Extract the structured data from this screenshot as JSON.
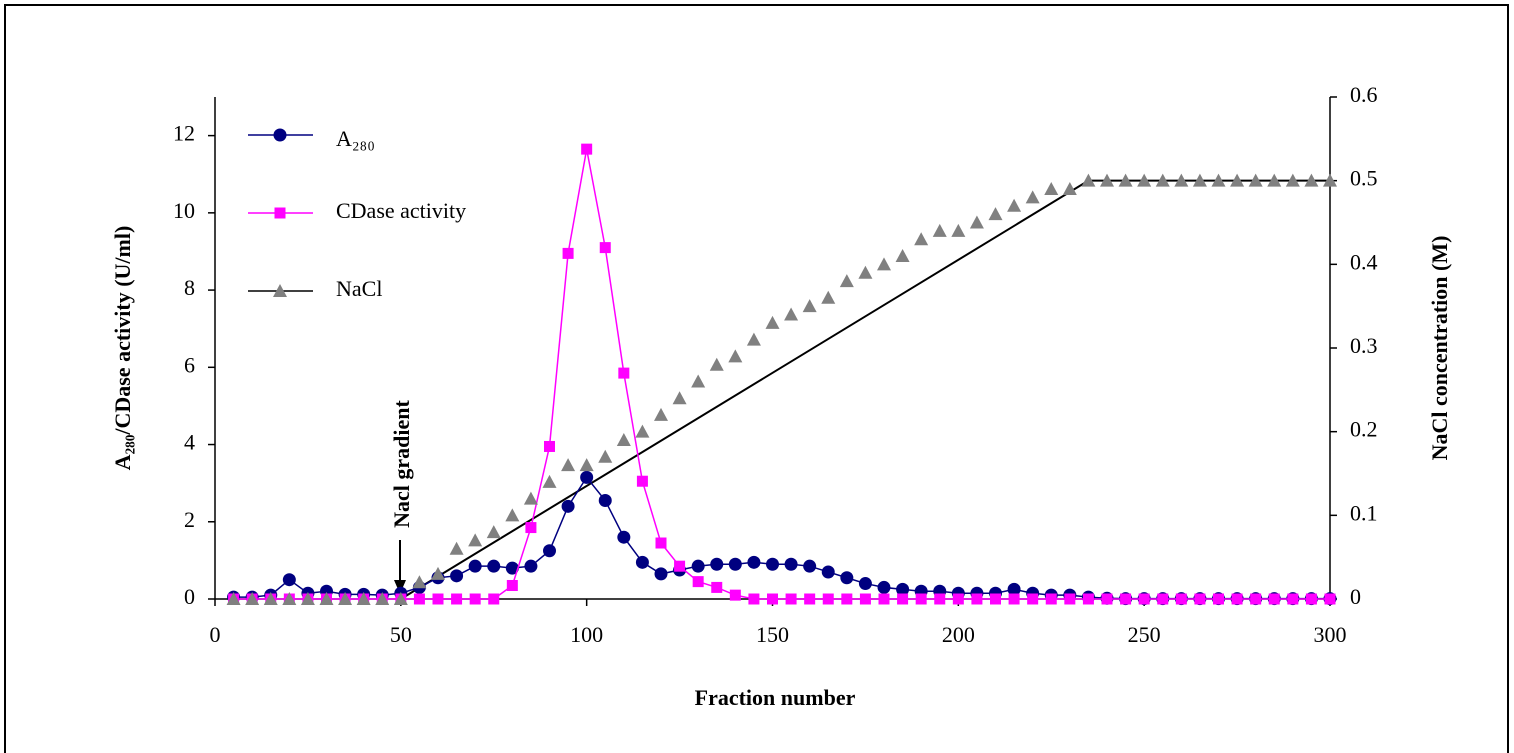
{
  "chart_data": {
    "type": "line",
    "x_label": "Fraction number",
    "y_label": "A₂₈₀/CDase activity  (U/ml)",
    "y2_label": "NaCl concentration (M)",
    "annotation": "Nacl  gradient",
    "x": [
      5,
      10,
      15,
      20,
      25,
      30,
      35,
      40,
      45,
      50,
      55,
      60,
      65,
      70,
      75,
      80,
      85,
      90,
      95,
      100,
      105,
      110,
      115,
      120,
      125,
      130,
      135,
      140,
      145,
      150,
      155,
      160,
      165,
      170,
      175,
      180,
      185,
      190,
      195,
      200,
      205,
      210,
      215,
      220,
      225,
      230,
      235,
      240,
      245,
      250,
      255,
      260,
      265,
      270,
      275,
      280,
      285,
      290,
      295,
      300
    ],
    "series": [
      {
        "name": "A₂₈₀",
        "color": "#000080",
        "marker": "circle",
        "connect": true,
        "values": [
          0.05,
          0.05,
          0.1,
          0.5,
          0.15,
          0.2,
          0.12,
          0.12,
          0.1,
          0.15,
          0.3,
          0.55,
          0.6,
          0.85,
          0.85,
          0.8,
          0.85,
          1.25,
          2.4,
          3.15,
          2.55,
          1.6,
          0.95,
          0.65,
          0.75,
          0.85,
          0.9,
          0.9,
          0.95,
          0.9,
          0.9,
          0.85,
          0.7,
          0.55,
          0.4,
          0.3,
          0.25,
          0.2,
          0.2,
          0.15,
          0.15,
          0.15,
          0.25,
          0.15,
          0.1,
          0.1,
          0.05,
          0.02,
          0.01,
          0.01,
          0.01,
          0.01,
          0.01,
          0.01,
          0.01,
          0.01,
          0.01,
          0.01,
          0.01,
          0.01
        ]
      },
      {
        "name": "CDase activity",
        "color": "#ff00ff",
        "marker": "square",
        "connect": true,
        "values": [
          0,
          0,
          0,
          0,
          0,
          0,
          0,
          0,
          0,
          0,
          0,
          0,
          0,
          0,
          0,
          0.35,
          1.85,
          3.95,
          8.95,
          11.65,
          9.1,
          5.85,
          3.05,
          1.45,
          0.85,
          0.45,
          0.3,
          0.1,
          0,
          0,
          0,
          0,
          0,
          0,
          0,
          0,
          0,
          0,
          0,
          0,
          0,
          0,
          0,
          0,
          0,
          0,
          0,
          0,
          0,
          0,
          0,
          0,
          0,
          0,
          0,
          0,
          0,
          0,
          0,
          0
        ]
      },
      {
        "name": "NaCl",
        "color": "#808080",
        "marker": "triangle",
        "connect": false,
        "axis": "y2",
        "values": [
          0,
          0,
          0,
          0,
          0,
          0,
          0,
          0,
          0,
          0,
          0.02,
          0.03,
          0.06,
          0.07,
          0.08,
          0.1,
          0.12,
          0.14,
          0.16,
          0.16,
          0.17,
          0.19,
          0.2,
          0.22,
          0.24,
          0.26,
          0.28,
          0.29,
          0.31,
          0.33,
          0.34,
          0.35,
          0.36,
          0.38,
          0.39,
          0.4,
          0.41,
          0.43,
          0.44,
          0.44,
          0.45,
          0.46,
          0.47,
          0.48,
          0.49,
          0.49,
          0.5,
          0.5,
          0.5,
          0.5,
          0.5,
          0.5,
          0.5,
          0.5,
          0.5,
          0.5,
          0.5,
          0.5,
          0.5,
          0.5
        ]
      }
    ],
    "gradient": {
      "color": "#000000",
      "axis": "y2",
      "x": [
        50,
        235,
        300
      ],
      "values": [
        0,
        0.5,
        0.5
      ]
    },
    "xlim": [
      0,
      300
    ],
    "xticks": [
      0,
      50,
      100,
      150,
      200,
      250,
      300
    ],
    "ylim": [
      0,
      13
    ],
    "yticks": [
      0,
      2,
      4,
      6,
      8,
      10,
      12
    ],
    "y2lim": [
      0,
      0.6
    ],
    "y2ticks": [
      0,
      0.1,
      0.2,
      0.3,
      0.4,
      0.5,
      0.6
    ],
    "legend": "top-left",
    "grid": false
  }
}
